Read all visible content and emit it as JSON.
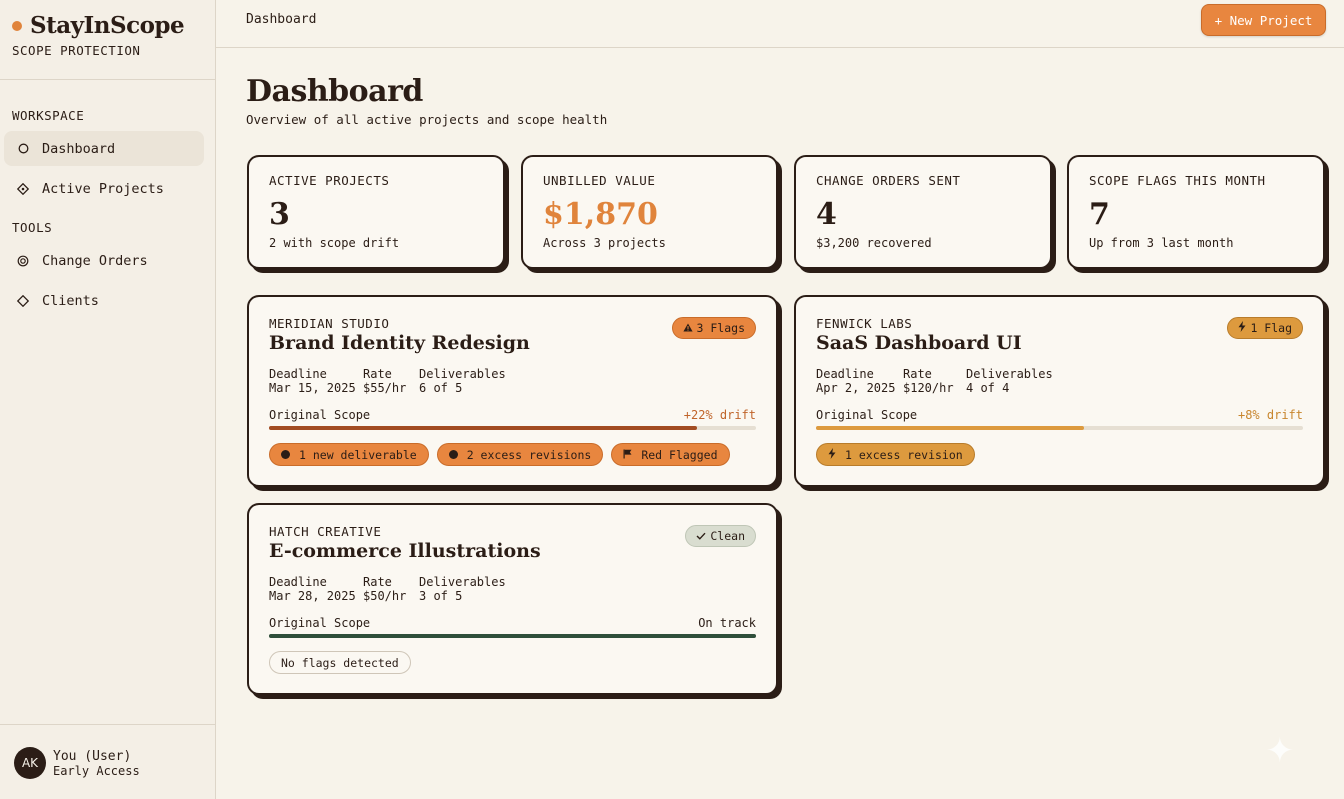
{
  "brand": {
    "name": "StayInScope",
    "tagline": "SCOPE PROTECTION"
  },
  "sidebar": {
    "sections": [
      {
        "label": "WORKSPACE"
      },
      {
        "label": "TOOLS"
      }
    ],
    "items": [
      {
        "label": "Dashboard",
        "icon": "circle-icon",
        "active": true
      },
      {
        "label": "Active Projects",
        "icon": "diamond-dot-icon"
      },
      {
        "label": "Change Orders",
        "icon": "target-icon"
      },
      {
        "label": "Clients",
        "icon": "diamond-icon"
      }
    ]
  },
  "user": {
    "initials": "AK",
    "name": "You (User)",
    "plan": "Early Access"
  },
  "topbar": {
    "breadcrumb": "Dashboard",
    "new_button": "+ New Project"
  },
  "page": {
    "title": "Dashboard",
    "subtitle": "Overview of all active projects and scope health"
  },
  "stats": [
    {
      "label": "ACTIVE PROJECTS",
      "value": "3",
      "sub": "2 with scope drift"
    },
    {
      "label": "UNBILLED VALUE",
      "value": "$1,870",
      "sub": "Across 3 projects",
      "accent": "#e0843c"
    },
    {
      "label": "CHANGE ORDERS SENT",
      "value": "4",
      "sub": "$3,200 recovered"
    },
    {
      "label": "SCOPE FLAGS THIS MONTH",
      "value": "7",
      "sub": "Up from 3 last month"
    }
  ],
  "projects": [
    {
      "client": "MERIDIAN STUDIO",
      "title": "Brand Identity Redesign",
      "badge": "3 Flags",
      "badge_icon": "warning-icon",
      "deadline_label": "Deadline",
      "deadline": "Mar 15, 2025",
      "rate_label": "Rate",
      "rate": "$55/hr",
      "deliverables_label": "Deliverables",
      "deliverables": "6 of 5",
      "scope_label": "Original Scope",
      "drift": "+22% drift",
      "progress": 0.878,
      "bar_color": "#a24c22",
      "chips": [
        {
          "label": "1 new deliverable",
          "icon": "dot-icon"
        },
        {
          "label": "2 excess revisions",
          "icon": "dot-icon"
        },
        {
          "label": "Red Flagged",
          "icon": "flag-icon"
        }
      ]
    },
    {
      "client": "FENWICK LABS",
      "title": "SaaS Dashboard UI",
      "badge": "1 Flag",
      "badge_icon": "bolt-icon",
      "deadline_label": "Deadline",
      "deadline": "Apr 2, 2025",
      "rate_label": "Rate",
      "rate": "$120/hr",
      "deliverables_label": "Deliverables",
      "deliverables": "4 of 4",
      "scope_label": "Original Scope",
      "drift": "+8% drift",
      "progress": 0.55,
      "bar_color": "#dd9a3e",
      "chips": [
        {
          "label": "1 excess revision",
          "icon": "bolt-icon"
        }
      ]
    },
    {
      "client": "HATCH CREATIVE",
      "title": "E-commerce Illustrations",
      "badge": "Clean",
      "badge_icon": "check-icon",
      "deadline_label": "Deadline",
      "deadline": "Mar 28, 2025",
      "rate_label": "Rate",
      "rate": "$50/hr",
      "deliverables_label": "Deliverables",
      "deliverables": "3 of 5",
      "scope_label": "Original Scope",
      "drift": "On track",
      "progress": 1.0,
      "bar_color": "#2f4f3b",
      "chips": [
        {
          "label": "No flags detected"
        }
      ]
    }
  ]
}
